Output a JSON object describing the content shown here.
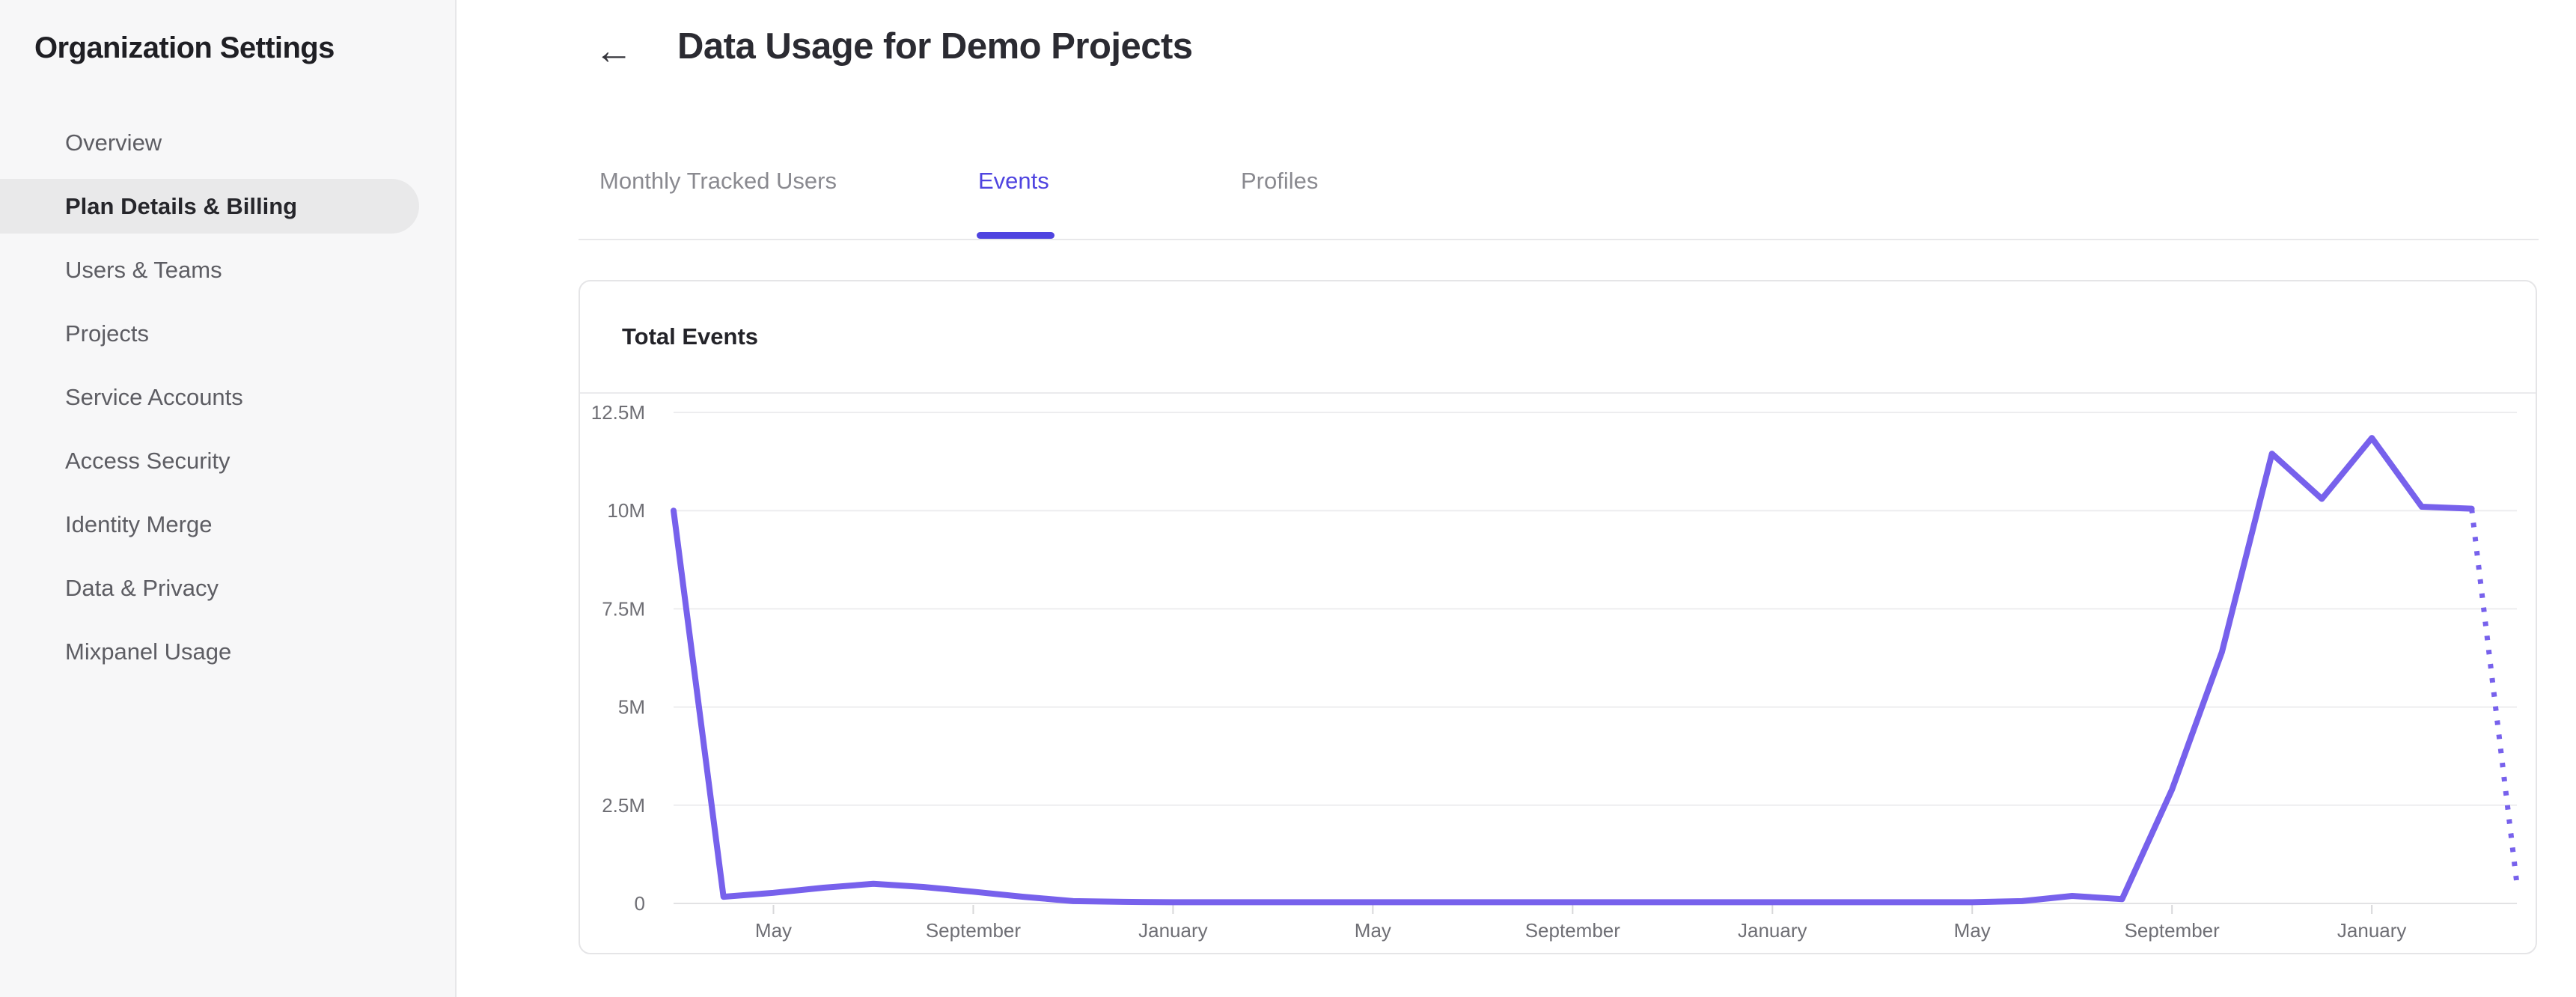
{
  "sidebar": {
    "title": "Organization Settings",
    "items": [
      {
        "label": "Overview",
        "selected": false
      },
      {
        "label": "Plan Details & Billing",
        "selected": true
      },
      {
        "label": "Users & Teams",
        "selected": false
      },
      {
        "label": "Projects",
        "selected": false
      },
      {
        "label": "Service Accounts",
        "selected": false
      },
      {
        "label": "Access Security",
        "selected": false
      },
      {
        "label": "Identity Merge",
        "selected": false
      },
      {
        "label": "Data & Privacy",
        "selected": false
      },
      {
        "label": "Mixpanel Usage",
        "selected": false
      }
    ]
  },
  "header": {
    "back_icon": "←",
    "title": "Data Usage for Demo Projects"
  },
  "tabs": [
    {
      "label": "Monthly Tracked Users",
      "active": false
    },
    {
      "label": "Events",
      "active": true
    },
    {
      "label": "Profiles",
      "active": false
    }
  ],
  "card": {
    "title": "Total Events"
  },
  "colors": {
    "accent_tab": "#4f44e0",
    "chart_line": "#7761ec",
    "gridline": "#ededef",
    "zero_axis": "#e2e2e4",
    "tick": "#d8d8da",
    "axis_text": "#6f6f75",
    "sidebar_bg": "#f7f7f8",
    "selected_pill": "#e9e9ea"
  },
  "chart_data": {
    "type": "line",
    "title": "Total Events",
    "xlabel": "",
    "ylabel": "",
    "grid": true,
    "legend": "none",
    "ylim": [
      0,
      12500000
    ],
    "yticks": [
      {
        "label": "0",
        "value": 0
      },
      {
        "label": "2.5M",
        "value": 2500000
      },
      {
        "label": "5M",
        "value": 5000000
      },
      {
        "label": "7.5M",
        "value": 7500000
      },
      {
        "label": "10M",
        "value": 10000000
      },
      {
        "label": "12.5M",
        "value": 12500000
      }
    ],
    "x_unit": "month",
    "xticks": [
      {
        "m": 2,
        "label": "May"
      },
      {
        "m": 6,
        "label": "September"
      },
      {
        "m": 10,
        "label": "January"
      },
      {
        "m": 14,
        "label": "May"
      },
      {
        "m": 18,
        "label": "September"
      },
      {
        "m": 22,
        "label": "January"
      },
      {
        "m": 26,
        "label": "May"
      },
      {
        "m": 30,
        "label": "September"
      },
      {
        "m": 34,
        "label": "January"
      }
    ],
    "series": [
      {
        "name": "Total Events",
        "style": "solid",
        "points": [
          [
            0,
            10000000
          ],
          [
            1,
            170000
          ],
          [
            2,
            270000
          ],
          [
            3,
            400000
          ],
          [
            4,
            500000
          ],
          [
            5,
            420000
          ],
          [
            6,
            300000
          ],
          [
            7,
            170000
          ],
          [
            8,
            60000
          ],
          [
            9,
            40000
          ],
          [
            10,
            30000
          ],
          [
            11,
            30000
          ],
          [
            12,
            30000
          ],
          [
            13,
            30000
          ],
          [
            14,
            30000
          ],
          [
            15,
            30000
          ],
          [
            16,
            30000
          ],
          [
            17,
            30000
          ],
          [
            18,
            30000
          ],
          [
            19,
            30000
          ],
          [
            20,
            30000
          ],
          [
            21,
            30000
          ],
          [
            22,
            30000
          ],
          [
            23,
            30000
          ],
          [
            24,
            30000
          ],
          [
            25,
            30000
          ],
          [
            26,
            30000
          ],
          [
            27,
            60000
          ],
          [
            28,
            190000
          ],
          [
            29,
            110000
          ],
          [
            30,
            2900000
          ],
          [
            31,
            6400000
          ],
          [
            32,
            11450000
          ],
          [
            33,
            10300000
          ],
          [
            34,
            11850000
          ],
          [
            35,
            10100000
          ],
          [
            36,
            10050000
          ]
        ]
      },
      {
        "name": "Total Events (incomplete month projection)",
        "style": "dotted",
        "points": [
          [
            36,
            10050000
          ],
          [
            36.9,
            550000
          ]
        ]
      }
    ]
  }
}
